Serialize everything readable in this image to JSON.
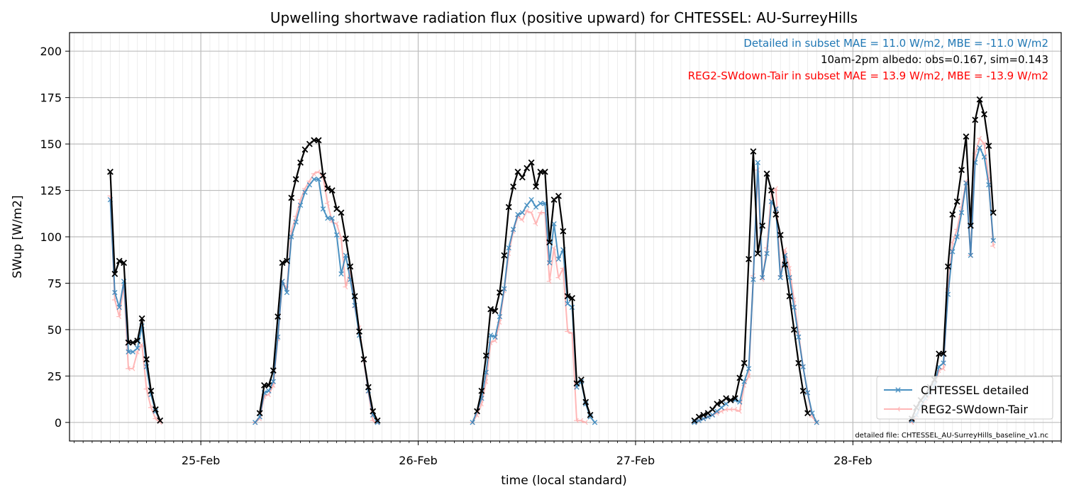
{
  "chart_data": {
    "type": "line",
    "title": "Upwelling shortwave radiation flux (positive upward) for CHTESSEL: AU-SurreyHills",
    "xlabel": "time (local standard)",
    "ylabel": "SWup [W/m2]",
    "xlim": [
      "2014-02-24 09:30",
      "2014-02-28 23:00"
    ],
    "ylim": [
      -10,
      210
    ],
    "yticks": [
      0,
      25,
      50,
      75,
      100,
      125,
      150,
      175,
      200
    ],
    "xticks": [
      {
        "label": "25-Feb",
        "t": "2014-02-25 00:00"
      },
      {
        "label": "26-Feb",
        "t": "2014-02-26 00:00"
      },
      {
        "label": "27-Feb",
        "t": "2014-02-27 00:00"
      },
      {
        "label": "28-Feb",
        "t": "2014-02-28 00:00"
      }
    ],
    "grid": true,
    "legend_position": "lower-right",
    "annotations": [
      {
        "text": "Detailed in subset MAE = 11.0 W/m2, MBE = -11.0 W/m2",
        "color": "#1f77b4"
      },
      {
        "text": "10am-2pm albedo: obs=0.167, sim=0.143",
        "color": "#000000"
      },
      {
        "text": "REG2-SWdown-Tair in subset MAE = 13.9 W/m2, MBE = -13.9 W/m2",
        "color": "#ff0000"
      }
    ],
    "footnote": "detailed file: CHTESSEL_AU-SurreyHills_baseline_v1.nc",
    "x_start": "2014-02-24 14:00",
    "x_step_minutes": 30,
    "series": [
      {
        "name": "Observed",
        "color": "#000000",
        "marker": "x",
        "in_legend": false,
        "segments": [
          {
            "start": "2014-02-24 14:00",
            "values": [
              135,
              80,
              87,
              86,
              43,
              43,
              44,
              56,
              34,
              17,
              7,
              1
            ]
          },
          {
            "start": "2014-02-25 06:30",
            "values": [
              5,
              20,
              20,
              28,
              57,
              86,
              87,
              121,
              131,
              140,
              147,
              150,
              152,
              152,
              133,
              126,
              125,
              115,
              113,
              99,
              84,
              68,
              49,
              34,
              19,
              6,
              1
            ]
          },
          {
            "start": "2014-02-26 06:30",
            "values": [
              6,
              17,
              36,
              61,
              60,
              70,
              90,
              116,
              127,
              135,
              132,
              137,
              140,
              127,
              135,
              135,
              97,
              120,
              122,
              103,
              68,
              67,
              21,
              23,
              11,
              4
            ]
          },
          {
            "start": "2014-02-27 06:30",
            "values": [
              1,
              3,
              4,
              5,
              7,
              10,
              11,
              13,
              12,
              13,
              24,
              32,
              88,
              146,
              91,
              106,
              134,
              125,
              112,
              101,
              85,
              68,
              50,
              32,
              17,
              5
            ]
          },
          {
            "start": "2014-02-28 06:30",
            "values": [
              2,
              8,
              12,
              15,
              19,
              23,
              37,
              37,
              84,
              112,
              119,
              136,
              154,
              106,
              163,
              174,
              166,
              149,
              113
            ]
          }
        ]
      },
      {
        "name": "CHTESSEL detailed",
        "color": "#1f77b4",
        "marker": "x",
        "in_legend": true,
        "segments": [
          {
            "start": "2014-02-24 14:00",
            "values": [
              120,
              70,
              62,
              76,
              38,
              38,
              40,
              52,
              30,
              15,
              6,
              1
            ]
          },
          {
            "start": "2014-02-25 06:00",
            "values": [
              0,
              3,
              16,
              17,
              22,
              46,
              76,
              70,
              100,
              108,
              117,
              124,
              128,
              131,
              131,
              115,
              110,
              110,
              101,
              80,
              90,
              77,
              63,
              47,
              34,
              17,
              4,
              0
            ]
          },
          {
            "start": "2014-02-26 06:00",
            "values": [
              0,
              6,
              13,
              27,
              47,
              46,
              57,
              72,
              94,
              104,
              112,
              113,
              117,
              120,
              116,
              118,
              118,
              86,
              107,
              88,
              93,
              64,
              62,
              19,
              22,
              10,
              3,
              0
            ]
          },
          {
            "start": "2014-02-27 06:30",
            "values": [
              0,
              1,
              2,
              3,
              4,
              6,
              8,
              10,
              12,
              12,
              11,
              22,
              29,
              77,
              140,
              78,
              91,
              119,
              115,
              78,
              90,
              78,
              62,
              46,
              30,
              16,
              5,
              0
            ]
          },
          {
            "start": "2014-02-28 06:30",
            "values": [
              1,
              4,
              9,
              13,
              16,
              20,
              30,
              32,
              69,
              92,
              100,
              113,
              129,
              90,
              140,
              148,
              143,
              128,
              98
            ]
          }
        ]
      },
      {
        "name": "REG2-SWdown-Tair",
        "color": "#ff9999",
        "marker": "tri",
        "in_legend": true,
        "segments": [
          {
            "start": "2014-02-24 14:00",
            "values": [
              122,
              66,
              57,
              74,
              29,
              29,
              38,
              42,
              18,
              8,
              2,
              0
            ]
          },
          {
            "start": "2014-02-25 06:00",
            "values": [
              0,
              2,
              14,
              15,
              20,
              45,
              76,
              72,
              103,
              111,
              120,
              126,
              130,
              134,
              135,
              132,
              118,
              108,
              107,
              99,
              73,
              82,
              62,
              51,
              33,
              16,
              1,
              0
            ]
          },
          {
            "start": "2014-02-26 06:00",
            "values": [
              0,
              4,
              10,
              22,
              43,
              44,
              54,
              71,
              91,
              103,
              111,
              109,
              114,
              113,
              107,
              113,
              113,
              76,
              94,
              78,
              83,
              49,
              48,
              1,
              1,
              0
            ]
          },
          {
            "start": "2014-02-27 06:30",
            "values": [
              0,
              1,
              2,
              3,
              4,
              5,
              6,
              7,
              7,
              7,
              6,
              20,
              25,
              79,
              136,
              77,
              94,
              124,
              126,
              79,
              93,
              83,
              66,
              48,
              30,
              16,
              3,
              0
            ]
          },
          {
            "start": "2014-02-28 06:30",
            "values": [
              0,
              3,
              8,
              11,
              14,
              18,
              28,
              29,
              72,
              97,
              104,
              116,
              130,
              90,
              145,
              153,
              150,
              131,
              95
            ]
          }
        ]
      }
    ]
  }
}
